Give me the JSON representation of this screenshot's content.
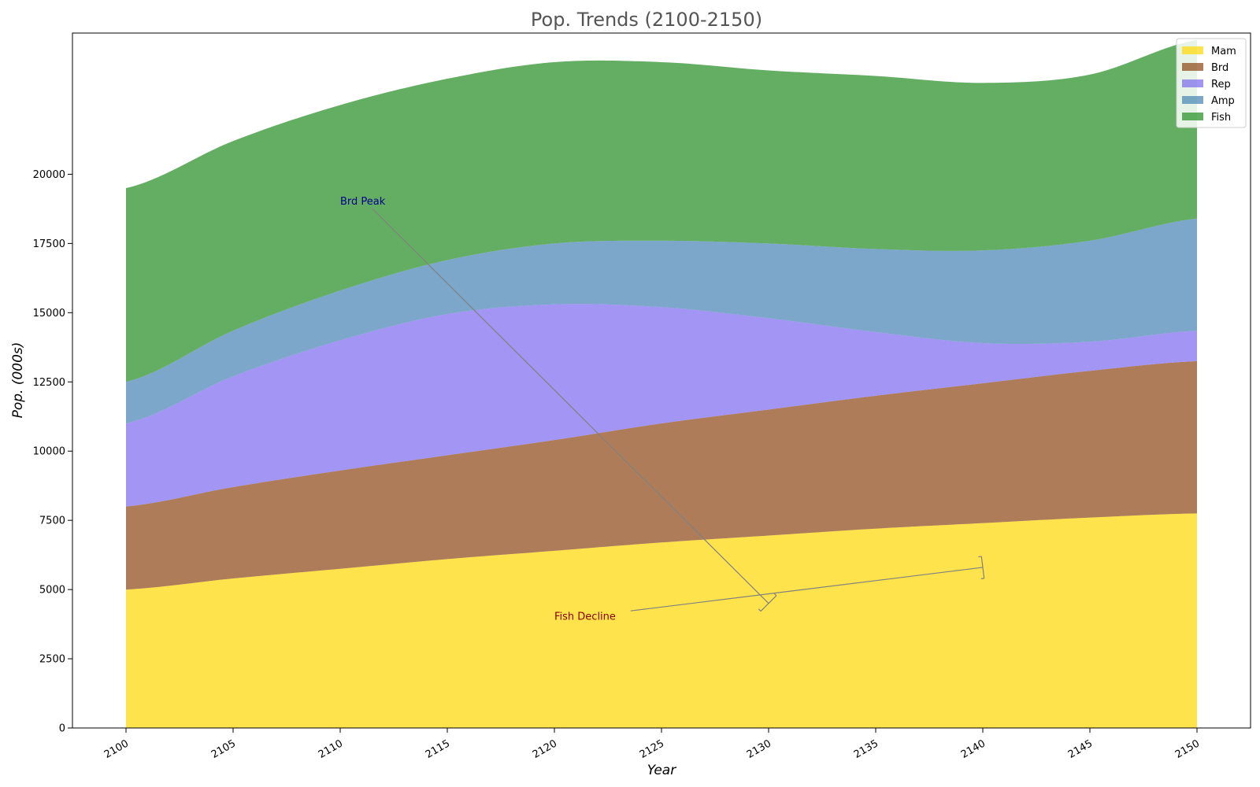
{
  "chart_data": {
    "type": "area",
    "stacked": true,
    "title": "Pop. Trends (2100-2150)",
    "xlabel": "Year",
    "ylabel": "Pop. (000s)",
    "xlim": [
      2097.5,
      2152.5
    ],
    "ylim": [
      0,
      25100
    ],
    "xticks": [
      2100,
      2105,
      2110,
      2115,
      2120,
      2125,
      2130,
      2135,
      2140,
      2145,
      2150
    ],
    "yticks": [
      0,
      2500,
      5000,
      7500,
      10000,
      12500,
      15000,
      17500,
      20000
    ],
    "grid": false,
    "legend_position": "top-right",
    "x": [
      2100,
      2105,
      2110,
      2115,
      2120,
      2125,
      2130,
      2135,
      2140,
      2145,
      2150
    ],
    "series": [
      {
        "name": "Mam",
        "color": "#FFD700",
        "values": [
          5000,
          5400,
          5750,
          6100,
          6400,
          6700,
          6950,
          7200,
          7400,
          7600,
          7750
        ]
      },
      {
        "name": "Brd",
        "color": "#8B4513",
        "values": [
          3000,
          3300,
          3550,
          3750,
          4000,
          4300,
          4550,
          4800,
          5050,
          5300,
          5500
        ]
      },
      {
        "name": "Rep",
        "color": "#7B68EE",
        "values": [
          3000,
          4000,
          4700,
          5100,
          4900,
          4200,
          3300,
          2300,
          1450,
          1050,
          1100
        ]
      },
      {
        "name": "Amp",
        "color": "#4682B4",
        "values": [
          1500,
          1650,
          1800,
          1950,
          2200,
          2400,
          2700,
          3000,
          3350,
          3650,
          4050
        ]
      },
      {
        "name": "Fish",
        "color": "#228B22",
        "values": [
          7000,
          6850,
          6700,
          6550,
          6550,
          6450,
          6250,
          6250,
          6050,
          6000,
          6450
        ]
      }
    ],
    "annotations": [
      {
        "text": "Brd Peak",
        "color": "#00008B",
        "text_xy": [
          2110,
          19050
        ],
        "target_xy": [
          2130,
          4500
        ]
      },
      {
        "text": "Fish Decline",
        "color": "#8B0000",
        "text_xy": [
          2120,
          4050
        ],
        "target_xy": [
          2140,
          5800
        ]
      }
    ]
  }
}
